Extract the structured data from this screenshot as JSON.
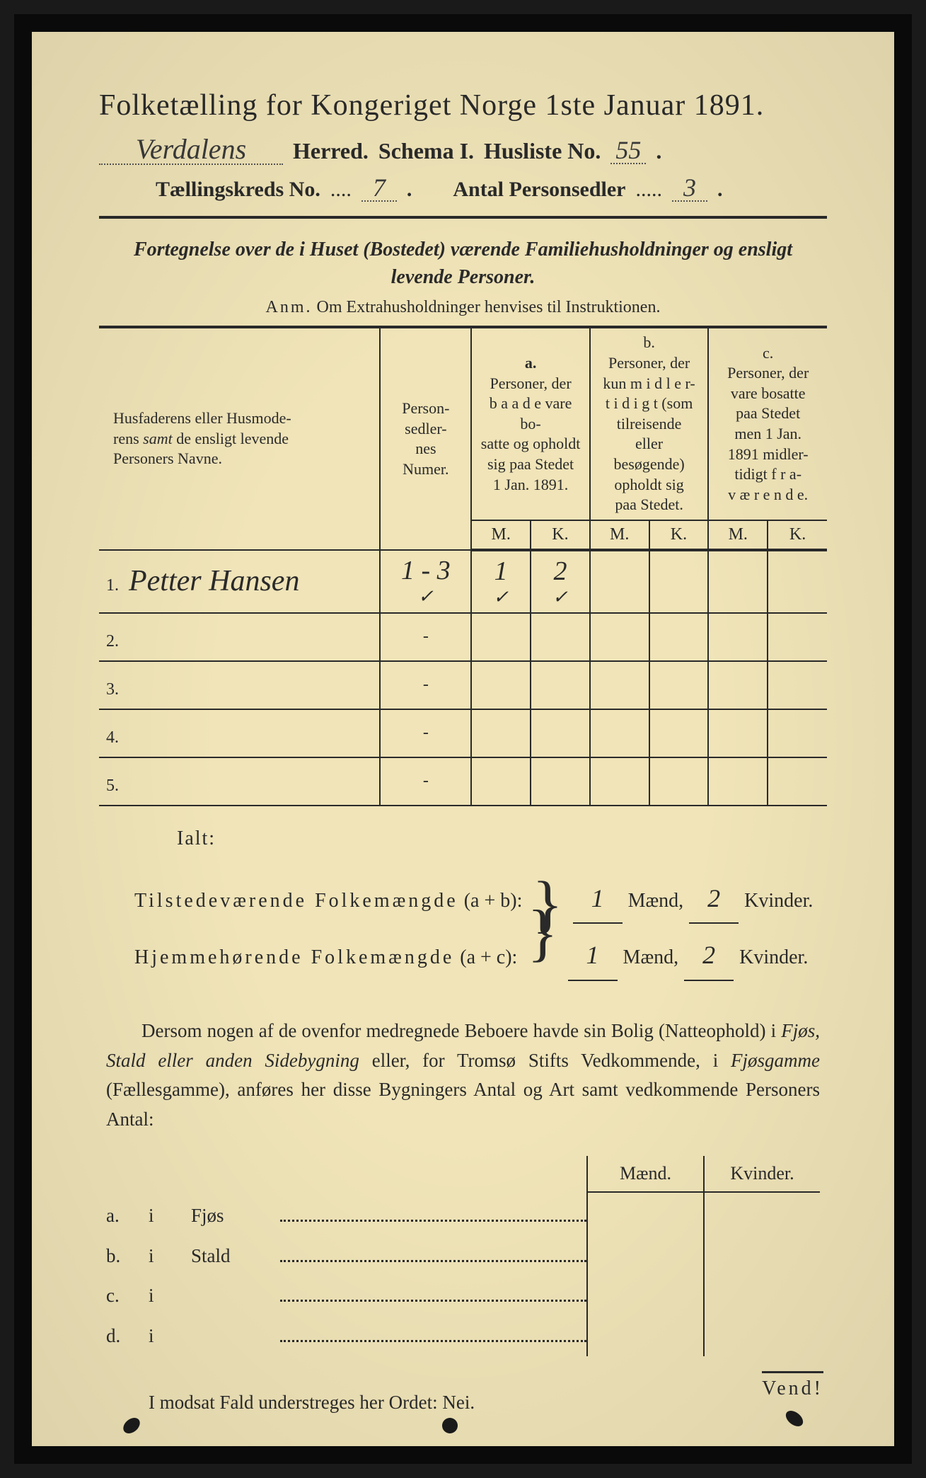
{
  "colors": {
    "paper": "#f0e4b8",
    "ink": "#2a2a2a",
    "frame": "#0a0a0a",
    "handwriting": "#3a3a3a"
  },
  "typography": {
    "title_fontsize_pt": 32,
    "body_fontsize_pt": 20,
    "handwriting_family": "Brush Script MT",
    "serif_family": "Georgia"
  },
  "header": {
    "title": "Folketælling for Kongeriget Norge 1ste Januar 1891.",
    "herred_value": "Verdalens",
    "herred_label": "Herred.",
    "schema_label": "Schema I.",
    "husliste_label": "Husliste No.",
    "husliste_value": "55",
    "kreds_label": "Tællingskreds No.",
    "kreds_value": "7",
    "personsedler_label": "Antal Personsedler",
    "personsedler_value": "3"
  },
  "description": {
    "line1": "Fortegnelse over de i Huset (Bostedet) værende Familiehusholdninger og ensligt",
    "line2": "levende Personer."
  },
  "anm": {
    "label": "Anm.",
    "text": "Om Extrahusholdninger henvises til Instruktionen."
  },
  "table": {
    "headers": {
      "name": "Husfaderens eller Husmoderens samt de ensligt levende Personers Navne.",
      "numer": "Person-sedler-nes Numer.",
      "col_a_label": "a.",
      "col_a": "Personer, der baade vare bosatte og opholdt sig paa Stedet 1 Jan. 1891.",
      "col_b_label": "b.",
      "col_b": "Personer, der kun midler-tidigt (som tilreisende eller besøgende) opholdt sig paa Stedet.",
      "col_c_label": "c.",
      "col_c": "Personer, der vare bosatte paa Stedet men 1 Jan. 1891 midler-tidigt fra-værende.",
      "m": "M.",
      "k": "K."
    },
    "rows": [
      {
        "num": "1.",
        "name": "Petter Hansen",
        "numer": "1 - 3",
        "a_m": "1",
        "a_k": "2",
        "b_m": "",
        "b_k": "",
        "c_m": "",
        "c_k": ""
      },
      {
        "num": "2.",
        "name": "",
        "numer": "-",
        "a_m": "",
        "a_k": "",
        "b_m": "",
        "b_k": "",
        "c_m": "",
        "c_k": ""
      },
      {
        "num": "3.",
        "name": "",
        "numer": "-",
        "a_m": "",
        "a_k": "",
        "b_m": "",
        "b_k": "",
        "c_m": "",
        "c_k": ""
      },
      {
        "num": "4.",
        "name": "",
        "numer": "-",
        "a_m": "",
        "a_k": "",
        "b_m": "",
        "b_k": "",
        "c_m": "",
        "c_k": ""
      },
      {
        "num": "5.",
        "name": "",
        "numer": "-",
        "a_m": "",
        "a_k": "",
        "b_m": "",
        "b_k": "",
        "c_m": "",
        "c_k": ""
      }
    ],
    "checkmark_row": {
      "numer": "✓",
      "a_m": "✓",
      "a_k": "✓"
    }
  },
  "totals": {
    "ialt": "Ialt:",
    "line1_label": "Tilstedeværende Folkemængde",
    "line1_formula": "(a + b):",
    "line2_label": "Hjemmehørende Folkemængde",
    "line2_formula": "(a + c):",
    "maend": "Mænd,",
    "kvinder": "Kvinder.",
    "line1_m": "1",
    "line1_k": "2",
    "line2_m": "1",
    "line2_k": "2"
  },
  "paragraph": {
    "text_parts": [
      "Dersom nogen af de ovenfor medregnede Beboere havde sin Bolig (Natteophold) i ",
      "Fjøs, Stald eller anden Sidebygning",
      " eller, for Tromsø Stifts Vedkommende, i ",
      "Fjøsgamme",
      " (Fællesgamme), anføres her disse Bygningers Antal og Art samt vedkommende Personers Antal:"
    ]
  },
  "lower_table": {
    "header_m": "Mænd.",
    "header_k": "Kvinder.",
    "rows": [
      {
        "a": "a.",
        "i": "i",
        "label": "Fjøs"
      },
      {
        "a": "b.",
        "i": "i",
        "label": "Stald"
      },
      {
        "a": "c.",
        "i": "i",
        "label": ""
      },
      {
        "a": "d.",
        "i": "i",
        "label": ""
      }
    ]
  },
  "nei_line": "I modsat Fald understreges her Ordet: Nei.",
  "vend": "Vend!"
}
